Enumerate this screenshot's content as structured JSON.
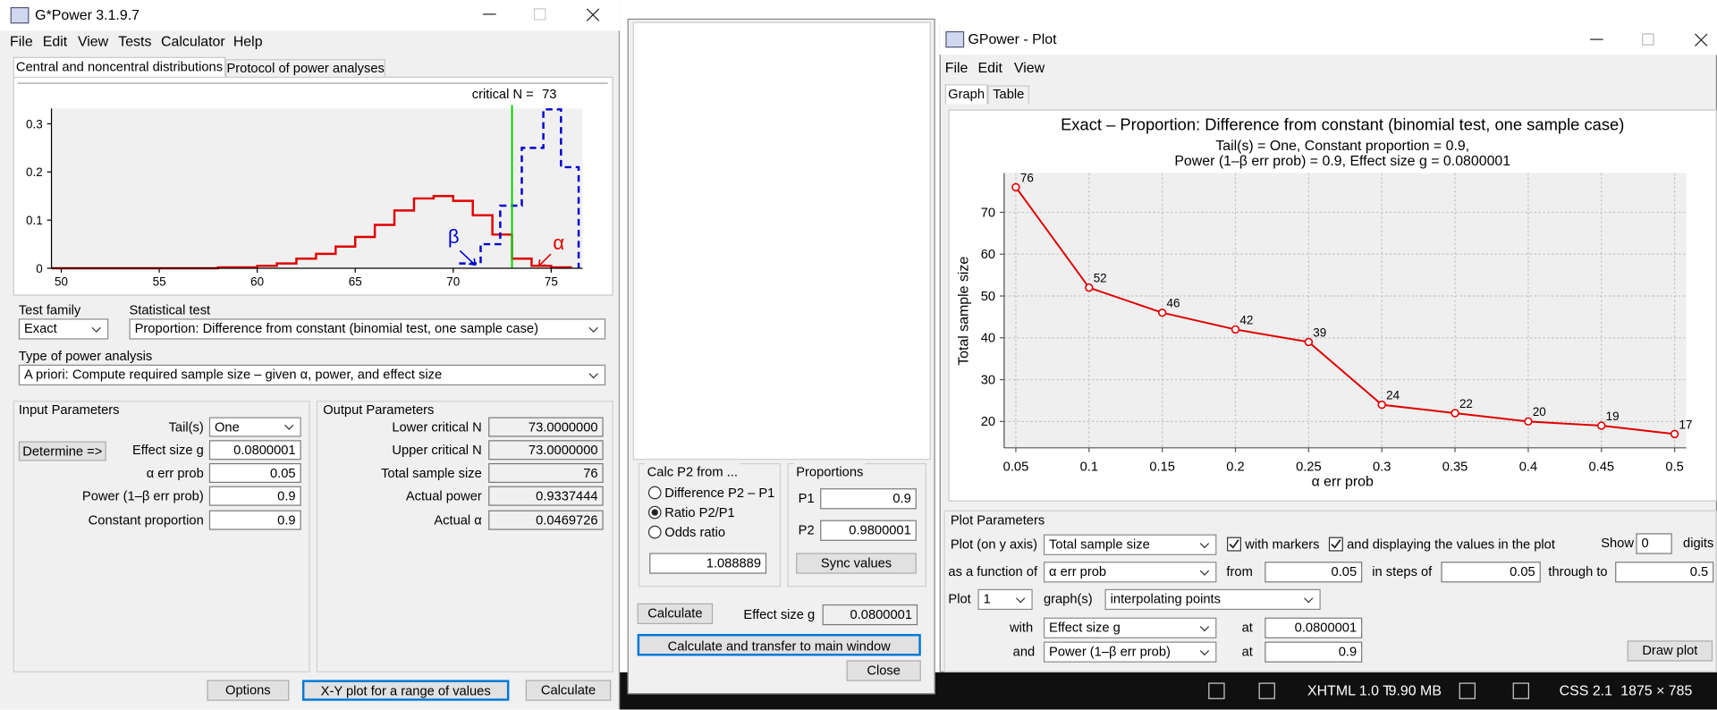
{
  "main_window": {
    "title": "G*Power 3.1.9.7",
    "menu": [
      "File",
      "Edit",
      "View",
      "Tests",
      "Calculator",
      "Help"
    ],
    "tabs": [
      "Central and noncentral distributions",
      "Protocol of power analyses"
    ],
    "active_tab": 0,
    "test_family": {
      "label": "Test family",
      "value": "Exact"
    },
    "statistical_test": {
      "label": "Statistical test",
      "value": "Proportion: Difference from constant (binomial test, one sample case)"
    },
    "power_analysis": {
      "label": "Type of power analysis",
      "value": "A priori: Compute required sample size – given α, power, and effect size"
    },
    "input_parameters": {
      "title": "Input Parameters",
      "determine": "Determine =>",
      "fields": [
        {
          "label": "Tail(s)",
          "value": "One"
        },
        {
          "label": "Effect size g",
          "value": "0.0800001"
        },
        {
          "label": "α err prob",
          "value": "0.05"
        },
        {
          "label": "Power (1–β err prob)",
          "value": "0.9"
        },
        {
          "label": "Constant proportion",
          "value": "0.9"
        }
      ]
    },
    "output_parameters": {
      "title": "Output Parameters",
      "fields": [
        {
          "label": "Lower critical N",
          "value": "73.0000000"
        },
        {
          "label": "Upper critical N",
          "value": "73.0000000"
        },
        {
          "label": "Total sample size",
          "value": "76"
        },
        {
          "label": "Actual power",
          "value": "0.9337444"
        },
        {
          "label": "Actual α",
          "value": "0.0469726"
        }
      ]
    },
    "buttons": [
      "Options",
      "X-Y plot for a range of values",
      "Calculate"
    ]
  },
  "p2_dialog": {
    "group_title": "Calc P2 from ...",
    "options": [
      "Difference P2 – P1",
      "Ratio P2/P1",
      "Odds ratio"
    ],
    "selected": 1,
    "ratio_value": "1.088889",
    "proportions": {
      "title": "Proportions",
      "fields": [
        {
          "label": "P1",
          "value": "0.9"
        },
        {
          "label": "P2",
          "value": "0.9800001"
        }
      ]
    },
    "sync_button": "Sync values",
    "calculate_button": "Calculate",
    "effect_size_label": "Effect size g",
    "effect_size_value": "0.0800001",
    "transfer_button": "Calculate and transfer to main window",
    "close_button": "Close"
  },
  "plot_window": {
    "title": "GPower - Plot",
    "menu": [
      "File",
      "Edit",
      "View"
    ],
    "tabs": [
      "Graph",
      "Table"
    ],
    "active_tab": 0,
    "plot_parameters": {
      "title": "Plot Parameters",
      "y_axis_label": "Plot (on y axis)",
      "y_axis_value": "Total sample size",
      "with_markers": {
        "label": "with markers",
        "checked": true
      },
      "display_values": {
        "label": "and displaying the values in the plot",
        "checked": true
      },
      "show_label": "Show",
      "digits_value": "0",
      "digits_label": "digits",
      "function_label": "as a function of",
      "function_value": "α err prob",
      "from_label": "from",
      "from_value": "0.05",
      "steps_label": "in steps of",
      "steps_value": "0.05",
      "through_label": "through to",
      "through_value": "0.5",
      "plot_label": "Plot",
      "plot_count": "1",
      "graphs_label": "graph(s)",
      "graph_mode": "interpolating points",
      "with_label": "with",
      "with_value": "Effect size g",
      "with_at_label": "at",
      "with_at_value": "0.0800001",
      "and_label": "and",
      "and_value": "Power (1–β err prob)",
      "and_at_label": "at",
      "and_at_value": "0.9",
      "draw_button": "Draw plot"
    }
  },
  "status_bar": [
    "XHTML 1.0 T",
    "9.90 MB",
    "CSS 2.1",
    "1875 × 785"
  ],
  "chart_data": [
    {
      "type": "line",
      "title": "Exact – Proportion: Difference from constant (binomial test, one sample case)",
      "subtitle": [
        "Tail(s) = One, Constant proportion = 0.9,",
        "Power (1–β err prob) = 0.9, Effect size g = 0.0800001"
      ],
      "x_label": "α err prob",
      "y_label": "Total sample size",
      "x": [
        0.05,
        0.1,
        0.15,
        0.2,
        0.25,
        0.3,
        0.35,
        0.4,
        0.45,
        0.5
      ],
      "series": [
        {
          "color": "#e00000",
          "values": [
            76,
            52,
            46,
            42,
            39,
            24,
            22,
            20,
            19,
            17
          ]
        }
      ],
      "xlim": [
        0.042,
        0.508
      ],
      "ylim": [
        13.7,
        79.4
      ],
      "xticks": [
        0.05,
        0.1,
        0.15,
        0.2,
        0.25,
        0.3,
        0.35,
        0.4,
        0.45,
        0.5
      ],
      "yticks": [
        20,
        30,
        40,
        50,
        60,
        70
      ],
      "grid": true
    },
    {
      "type": "line",
      "critical_label": "critical N =",
      "critical_n": 73,
      "critical_color": "#00d000",
      "beta_label": "β",
      "alpha_label": "α",
      "series": [
        {
          "color": "#e00000",
          "dashed": false,
          "x": [
            49.5,
            58,
            60,
            61,
            62,
            63,
            64,
            65,
            66,
            67,
            68,
            69,
            70,
            71,
            72,
            73,
            74,
            75,
            76
          ],
          "values": [
            0,
            0.002,
            0.005,
            0.01,
            0.02,
            0.03,
            0.045,
            0.065,
            0.09,
            0.12,
            0.145,
            0.15,
            0.14,
            0.11,
            0.07,
            0.02,
            0.005,
            0.002,
            0
          ]
        },
        {
          "color": "#0000cc",
          "dashed": true,
          "x": [
            70.3,
            71.4,
            72.4,
            73.5,
            74.6,
            75.5,
            76.4
          ],
          "values": [
            0.01,
            0.05,
            0.13,
            0.25,
            0.33,
            0.21,
            0
          ]
        }
      ],
      "xlim": [
        49.5,
        76.6
      ],
      "ylim": [
        0,
        0.332
      ],
      "xticks": [
        50,
        55,
        60,
        65,
        70,
        75
      ],
      "yticks": [
        0,
        0.1,
        0.2,
        0.3
      ]
    }
  ]
}
